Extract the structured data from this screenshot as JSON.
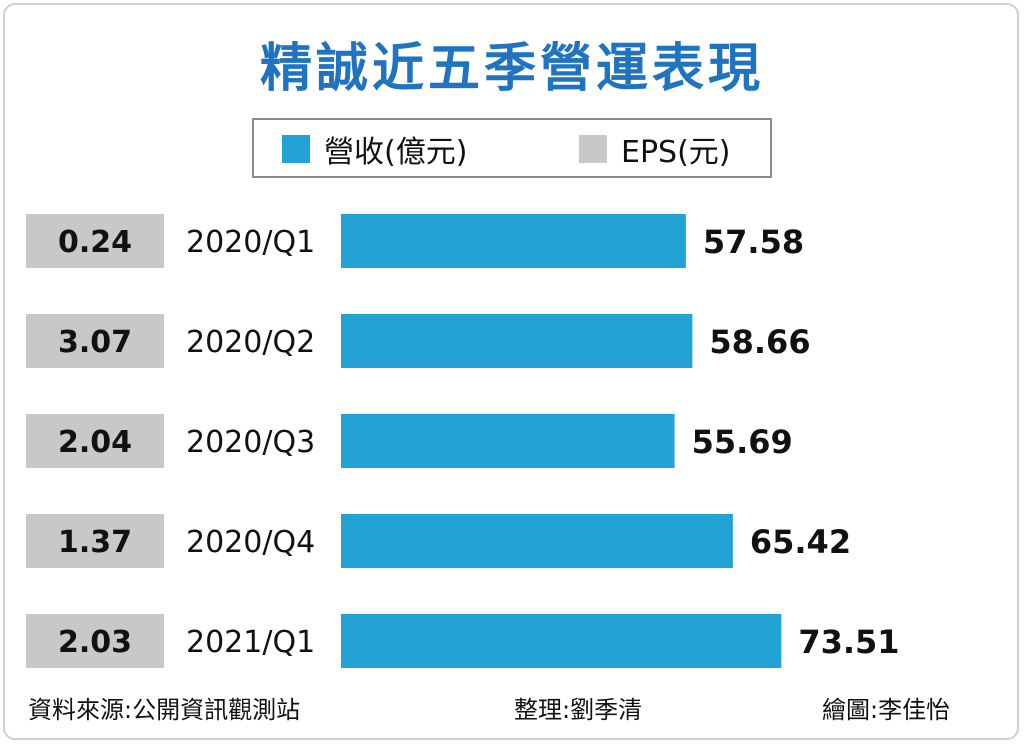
{
  "chart_data": {
    "type": "bar",
    "title": "精誠近五季營運表現",
    "categories": [
      "2020/Q1",
      "2020/Q2",
      "2020/Q3",
      "2020/Q4",
      "2021/Q1"
    ],
    "series": [
      {
        "name": "營收(億元)",
        "values": [
          57.58,
          58.66,
          55.69,
          65.42,
          73.51
        ]
      },
      {
        "name": "EPS(元)",
        "values": [
          0.24,
          3.07,
          2.04,
          1.37,
          2.03
        ]
      }
    ],
    "revenue_labels": [
      "57.58",
      "58.66",
      "55.69",
      "65.42",
      "73.51"
    ],
    "eps_labels": [
      "0.24",
      "3.07",
      "2.04",
      "1.37",
      "2.03"
    ],
    "legend": [
      {
        "label": "營收(億元)",
        "color": "#23a2d6"
      },
      {
        "label": "EPS(元)",
        "color": "#c8c8c8"
      }
    ],
    "orientation": "horizontal",
    "grid": false,
    "legend_position": "top"
  },
  "footer": {
    "source": "資料來源:公開資訊觀測站",
    "editor": "整理:劉季清",
    "illustrator": "繪圖:李佳怡"
  },
  "colors": {
    "title": "#1f73c0",
    "revenue_bar": "#23a2d6",
    "eps_box": "#c8c8c8",
    "frame": "#cfcfcf"
  }
}
